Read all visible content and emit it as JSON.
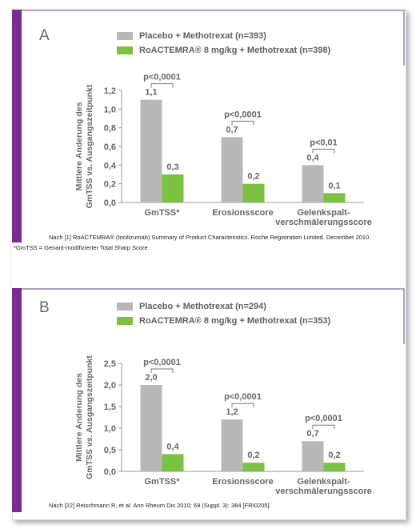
{
  "chart_data": [
    {
      "type": "bar",
      "panel_label": "A",
      "categories": [
        "GmTSS*",
        "Erosionsscore",
        "Gelenkspalt-|verschmälerungsscore"
      ],
      "series": [
        {
          "name": "Placebo + Methotrexat (n=393)",
          "values": [
            1.1,
            0.7,
            0.4
          ],
          "labels": [
            "1,1",
            "0,7",
            "0,4"
          ],
          "color": "#b8b8b8"
        },
        {
          "name": "RoACTEMRA® 8 mg/kg + Methotrexat (n=398)",
          "values": [
            0.3,
            0.2,
            0.1
          ],
          "labels": [
            "0,3",
            "0,2",
            "0,1"
          ],
          "color": "#7cc242"
        }
      ],
      "pvalues": [
        "p<0,0001",
        "p<0,0001",
        "p<0,01"
      ],
      "ylabel_lines": [
        "Mittlere Änderung des",
        "GmTSS vs. Ausgangszeitpunkt"
      ],
      "yticks": [
        0,
        0.2,
        0.4,
        0.6,
        0.8,
        1.0,
        1.2
      ],
      "ytick_labels": [
        "0,0",
        "0,2",
        "0,4",
        "0,6",
        "0,8",
        "1,0",
        "1,2"
      ],
      "ylim": [
        0,
        1.2
      ],
      "source": "Nach [1] RoACTEMRA® (tocilizumab) Summary of Product Characteristics. Roche Registration Limited. December 2010."
    },
    {
      "type": "bar",
      "panel_label": "B",
      "categories": [
        "GmTSS*",
        "Erosionsscore",
        "Gelenkspalt-|verschmälerungsscore"
      ],
      "series": [
        {
          "name": "Placebo + Methotrexat (n=294)",
          "values": [
            2.0,
            1.2,
            0.7
          ],
          "labels": [
            "2,0",
            "1,2",
            "0,7"
          ],
          "color": "#b8b8b8"
        },
        {
          "name": "RoACTEMRA® 8 mg/kg + Methotrexat (n=353)",
          "values": [
            0.4,
            0.2,
            0.2
          ],
          "labels": [
            "0,4",
            "0,2",
            "0,2"
          ],
          "color": "#7cc242"
        }
      ],
      "pvalues": [
        "p<0,0001",
        "p<0,0001",
        "p<0,0001"
      ],
      "ylabel_lines": [
        "Mittlere Änderung des",
        "GmTSS vs. Ausgangszeitpunkt"
      ],
      "yticks": [
        0,
        0.5,
        1.0,
        1.5,
        2.0,
        2.5
      ],
      "ytick_labels": [
        "0,0",
        "0,5",
        "1,0",
        "1,5",
        "2,0",
        "2,5"
      ],
      "ylim": [
        0,
        2.5
      ],
      "source": "Nach [22] Reischmann R, et al. Ann Rheum Dis 2010; 69 (Suppl. 3): 384 [FRI0205]."
    }
  ],
  "footnote": "*GmTSS = Genant-modifizierter Total Sharp Score"
}
